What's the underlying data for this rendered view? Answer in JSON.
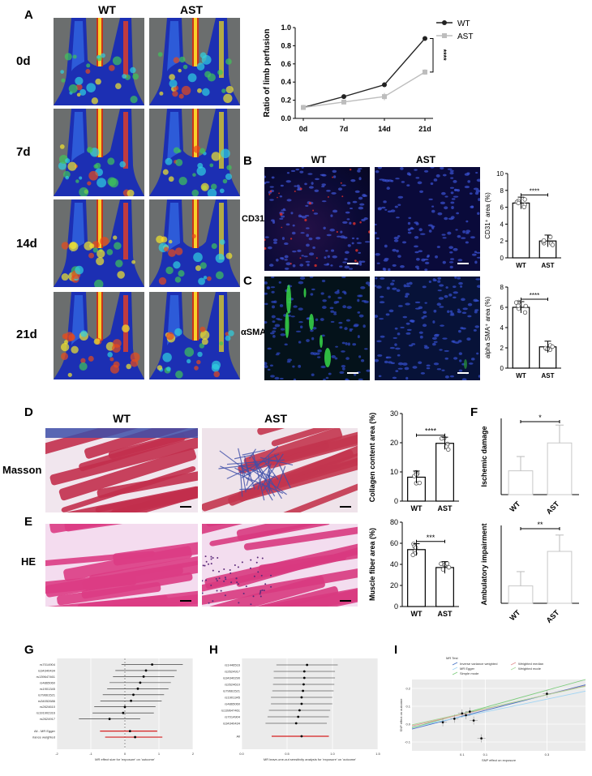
{
  "panels": {
    "A": "A",
    "B": "B",
    "C": "C",
    "D": "D",
    "E": "E",
    "F": "F",
    "G": "G",
    "H": "H",
    "I": "I"
  },
  "groups": {
    "wt": "WT",
    "ast": "AST"
  },
  "timepoints": [
    "0d",
    "7d",
    "14d",
    "21d"
  ],
  "stains": {
    "cd31": "CD31",
    "asma": "αSMA",
    "masson": "Masson",
    "he": "HE"
  },
  "colors": {
    "wt_line": "#222222",
    "ast_line": "#bdbdbd",
    "sig_red": "#d62020",
    "laser_bg": "#6b6e6e"
  },
  "chart_data": [
    {
      "id": "A",
      "type": "line",
      "ylabel": "Ratio of  limb perfusion",
      "categories": [
        "0d",
        "7d",
        "14d",
        "21d"
      ],
      "ylim": [
        0,
        1.0
      ],
      "yticks": [
        "0.0",
        "0.2",
        "0.4",
        "0.6",
        "0.8",
        "1.0"
      ],
      "series": [
        {
          "name": "WT",
          "values": [
            0.12,
            0.24,
            0.37,
            0.88
          ],
          "errors": [
            0.02,
            0.01,
            0.01,
            0.02
          ]
        },
        {
          "name": "AST",
          "values": [
            0.12,
            0.18,
            0.24,
            0.51
          ],
          "errors": [
            0.02,
            0.02,
            0.04,
            0.03
          ]
        }
      ],
      "annotation": "****",
      "legend": "top-right"
    },
    {
      "id": "B",
      "type": "bar",
      "ylabel": "CD31⁺ area (%)",
      "categories": [
        "WT",
        "AST"
      ],
      "values": [
        6.5,
        2.0
      ],
      "ylim": [
        0,
        10
      ],
      "yticks": [
        "0",
        "2",
        "4",
        "6",
        "8",
        "10"
      ],
      "annotation": "****"
    },
    {
      "id": "C",
      "type": "bar",
      "ylabel": "alpha SMA⁺ area (%)",
      "categories": [
        "WT",
        "AST"
      ],
      "values": [
        6.0,
        2.1
      ],
      "ylim": [
        0,
        8
      ],
      "yticks": [
        "0",
        "2",
        "4",
        "6",
        "8"
      ],
      "annotation": "****"
    },
    {
      "id": "D",
      "type": "bar",
      "ylabel": "Collagen content area (%)",
      "categories": [
        "WT",
        "AST"
      ],
      "values": [
        8.2,
        19.8
      ],
      "ylim": [
        0,
        30
      ],
      "yticks": [
        "0",
        "10",
        "20",
        "30"
      ],
      "annotation": "****"
    },
    {
      "id": "E",
      "type": "bar",
      "ylabel": "Muscle fiber area (%)",
      "categories": [
        "WT",
        "AST"
      ],
      "values": [
        54,
        37
      ],
      "ylim": [
        0,
        80
      ],
      "yticks": [
        "0",
        "20",
        "40",
        "60",
        "80"
      ],
      "annotation": "***"
    },
    {
      "id": "F1",
      "type": "bar",
      "ylabel": "Ischemic damage",
      "categories": [
        "WT",
        "AST"
      ],
      "values": [
        1.0,
        2.17
      ],
      "errors": [
        0.6,
        0.75
      ],
      "ylim": [
        0,
        3.2
      ],
      "annotation": "*"
    },
    {
      "id": "F2",
      "type": "bar",
      "ylabel": "Ambulatory impairment",
      "categories": [
        "WT",
        "AST"
      ],
      "values": [
        0.67,
        2.0
      ],
      "errors": [
        0.55,
        0.63
      ],
      "ylim": [
        0,
        3.0
      ],
      "annotation": "**"
    },
    {
      "id": "G",
      "type": "scatter",
      "xlabel": "MR effect size for 'exposure' on 'outcome'",
      "xticks": [
        "-2",
        "-1",
        "0",
        "1",
        "2"
      ],
      "xlim": [
        -2,
        2
      ],
      "rows": [
        "rs7014904",
        "rs34340434",
        "rs139647461",
        "rs4865060",
        "rs1901345",
        "rs79661521",
        "rs34052686",
        "rs2624610",
        "rs191902316",
        "rs2624917"
      ],
      "values": [
        0.8,
        0.62,
        0.55,
        0.45,
        0.38,
        0.25,
        0.18,
        0.0,
        -0.05,
        -0.45
      ],
      "summary_labels": [
        "All - MR Egger",
        "All - Inverse variance weighted"
      ],
      "summary_values": [
        0.15,
        0.3
      ]
    },
    {
      "id": "H",
      "type": "scatter",
      "xlabel": "MR leave-one-out sensitivity analysis for 'exposure' on 'outcome'",
      "xticks": [
        "0.0",
        "0.5",
        "1.0",
        "1.5"
      ],
      "xlim": [
        -0.1,
        1.9
      ],
      "rows": [
        "rs1446516",
        "rs2624917",
        "rs34340290",
        "rs2624610",
        "rs79661521",
        "rs1901345",
        "rs4865060",
        "rs139647461",
        "rs7014904",
        "rs34340434"
      ],
      "values": [
        0.86,
        0.82,
        0.82,
        0.81,
        0.8,
        0.78,
        0.78,
        0.75,
        0.73,
        0.7
      ],
      "summary_labels": [
        "All"
      ],
      "summary_values": [
        0.78
      ]
    },
    {
      "id": "I",
      "type": "scatter",
      "xlabel": "SNP effect on exposure",
      "ylabel": "SNP effect on outcome",
      "legend_title": "MR Test",
      "legend": [
        "Inverse variance weighted",
        "MR Egger",
        "Simple mode",
        "Weighted median",
        "Weighted mode"
      ],
      "xticks": [
        "0.1",
        "0.1",
        "0.3"
      ],
      "yticks": [
        "-0.1",
        "0.0",
        "0.1",
        "0.2"
      ],
      "points": [
        [
          0.03,
          0.01
        ],
        [
          0.06,
          0.03
        ],
        [
          0.08,
          0.06
        ],
        [
          0.09,
          0.05
        ],
        [
          0.1,
          0.07
        ],
        [
          0.11,
          0.02
        ],
        [
          0.13,
          -0.08
        ],
        [
          0.3,
          0.17
        ]
      ]
    }
  ]
}
